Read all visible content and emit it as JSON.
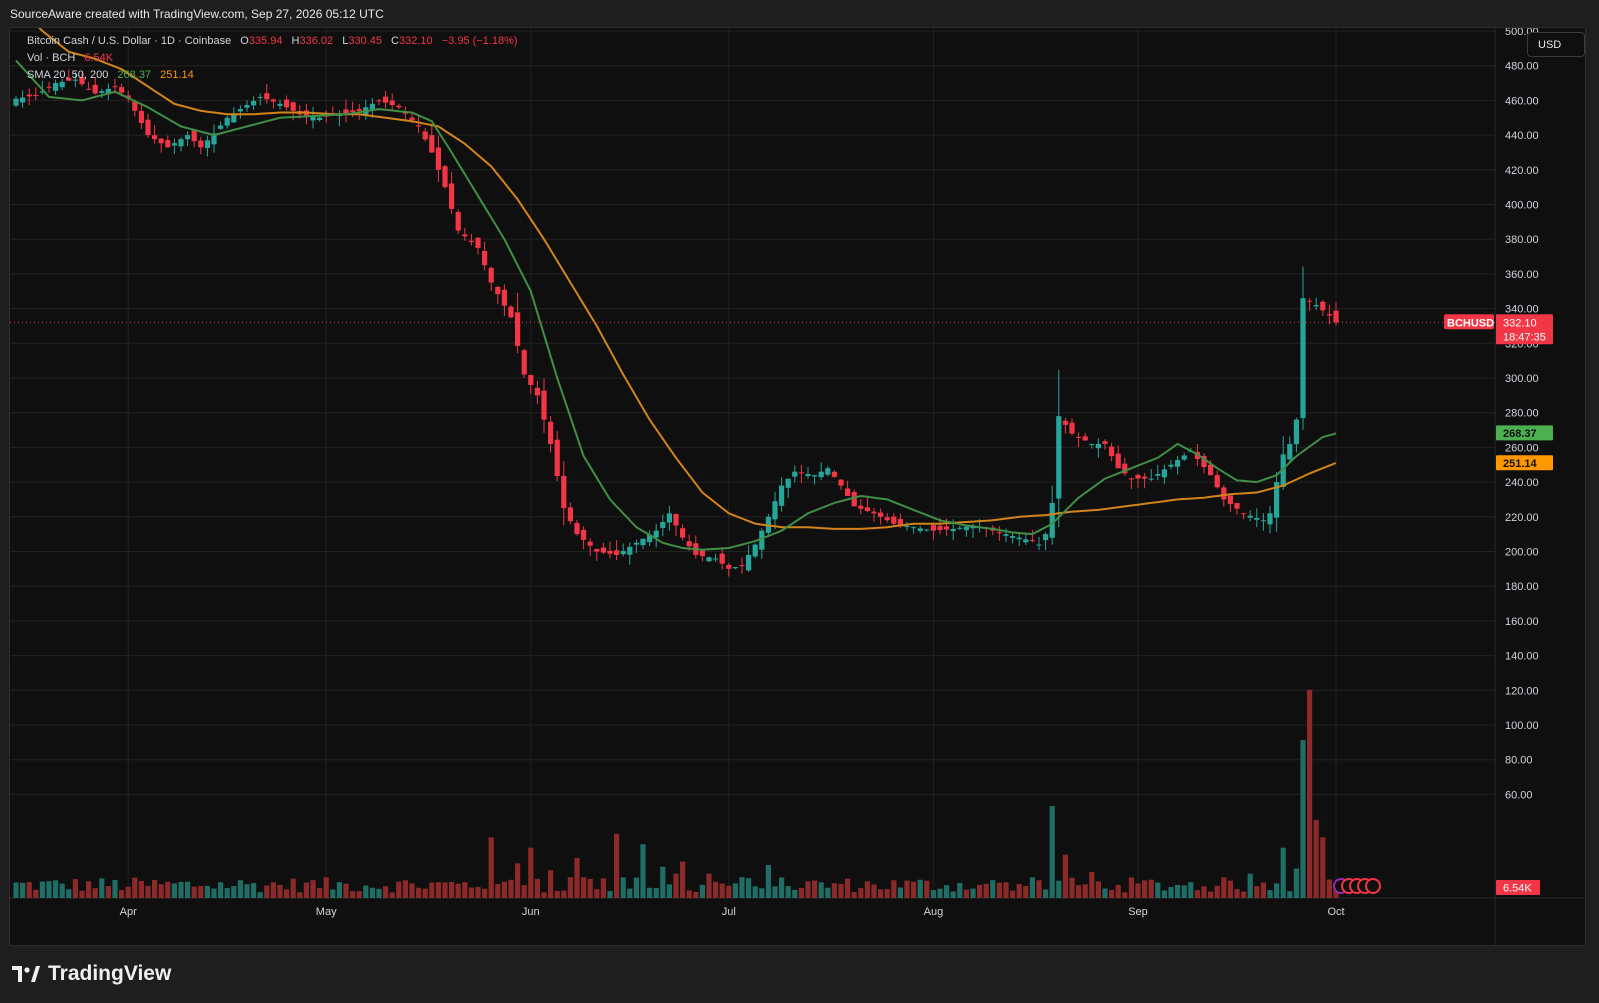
{
  "header": {
    "caption": "SourceAware created with TradingView.com, Sep 27, 2026 05:12 UTC"
  },
  "legend": {
    "symbol": "Bitcoin Cash / U.S. Dollar · 1D · Coinbase",
    "o_label": "O",
    "o_value": "335.94",
    "h_label": "H",
    "h_value": "336.02",
    "l_label": "L",
    "l_value": "330.45",
    "c_label": "C",
    "c_value": "332.10",
    "change": "−3.95 (−1.18%)",
    "vol_label": "Vol · BCH",
    "vol_value": "6.54K",
    "sma_label": "SMA 20, 50, 200",
    "sma20_value": "268.37",
    "sma50_value": "251.14"
  },
  "currency_button": "USD",
  "footer": {
    "brand": "TradingView"
  },
  "colors": {
    "up": "#26a69a",
    "down": "#f23645",
    "vol_up": "#1e6e66",
    "vol_down": "#8c2a2a",
    "sma20": "#4caf50",
    "sma50": "#ff9800",
    "grid": "#222222"
  },
  "chart_data": {
    "type": "candlestick",
    "symbol": "BCHUSD",
    "y_ticks": [
      "500.00",
      "480.00",
      "460.00",
      "440.00",
      "420.00",
      "400.00",
      "380.00",
      "360.00",
      "340.00",
      "320.00",
      "300.00",
      "280.00",
      "260.00",
      "240.00",
      "220.00",
      "200.00",
      "180.00",
      "160.00",
      "140.00",
      "120.00",
      "100.00",
      "80.00",
      "60.00"
    ],
    "ylim": [
      0,
      520
    ],
    "x_labels": [
      "Apr",
      "May",
      "Jun",
      "Jul",
      "Aug",
      "Sep",
      "Oct"
    ],
    "x_label_days": [
      17,
      47,
      78,
      108,
      139,
      170,
      200
    ],
    "last_price_label": "332.10",
    "countdown_label": "18:47:35",
    "sma20_label": "268.37",
    "sma50_label": "251.14",
    "volume_label": "6.54K",
    "price_keyframes": [
      [
        0,
        461
      ],
      [
        3,
        463
      ],
      [
        6,
        470
      ],
      [
        9,
        472
      ],
      [
        12,
        464
      ],
      [
        15,
        468
      ],
      [
        17,
        461
      ],
      [
        20,
        440
      ],
      [
        23,
        433
      ],
      [
        26,
        440
      ],
      [
        28,
        433
      ],
      [
        30,
        441
      ],
      [
        32,
        450
      ],
      [
        34,
        455
      ],
      [
        37,
        462
      ],
      [
        40,
        458
      ],
      [
        43,
        452
      ],
      [
        46,
        450
      ],
      [
        49,
        452
      ],
      [
        52,
        454
      ],
      [
        55,
        460
      ],
      [
        58,
        456
      ],
      [
        61,
        445
      ],
      [
        63,
        430
      ],
      [
        65,
        410
      ],
      [
        67,
        385
      ],
      [
        70,
        375
      ],
      [
        72,
        355
      ],
      [
        75,
        335
      ],
      [
        77,
        302
      ],
      [
        79,
        290
      ],
      [
        81,
        262
      ],
      [
        83,
        225
      ],
      [
        85,
        210
      ],
      [
        88,
        200
      ],
      [
        91,
        198
      ],
      [
        94,
        205
      ],
      [
        97,
        212
      ],
      [
        99,
        222
      ],
      [
        101,
        208
      ],
      [
        103,
        198
      ],
      [
        106,
        196
      ],
      [
        108,
        190
      ],
      [
        110,
        192
      ],
      [
        112,
        204
      ],
      [
        114,
        220
      ],
      [
        116,
        238
      ],
      [
        118,
        246
      ],
      [
        121,
        244
      ],
      [
        123,
        248
      ],
      [
        125,
        238
      ],
      [
        127,
        226
      ],
      [
        130,
        222
      ],
      [
        133,
        216
      ],
      [
        136,
        214
      ],
      [
        139,
        212
      ],
      [
        142,
        213
      ],
      [
        145,
        215
      ],
      [
        148,
        212
      ],
      [
        151,
        209
      ],
      [
        154,
        206
      ],
      [
        155,
        204
      ],
      [
        156,
        210
      ],
      [
        157,
        228
      ],
      [
        158,
        278
      ],
      [
        160,
        268
      ],
      [
        163,
        262
      ],
      [
        165,
        262
      ],
      [
        167,
        248
      ],
      [
        169,
        242
      ],
      [
        172,
        242
      ],
      [
        175,
        250
      ],
      [
        178,
        258
      ],
      [
        181,
        244
      ],
      [
        183,
        230
      ],
      [
        186,
        222
      ],
      [
        189,
        218
      ],
      [
        190,
        222
      ],
      [
        191,
        240
      ],
      [
        192,
        256
      ],
      [
        193,
        262
      ],
      [
        194,
        276
      ],
      [
        195,
        346
      ],
      [
        197,
        342
      ],
      [
        199,
        336
      ],
      [
        200,
        332
      ]
    ],
    "price_high": 366,
    "price_low": 182,
    "sma20_keyframes": [
      [
        0,
        483
      ],
      [
        5,
        462
      ],
      [
        10,
        460
      ],
      [
        15,
        465
      ],
      [
        20,
        456
      ],
      [
        25,
        445
      ],
      [
        30,
        440
      ],
      [
        35,
        445
      ],
      [
        40,
        450
      ],
      [
        45,
        451
      ],
      [
        50,
        452
      ],
      [
        55,
        455
      ],
      [
        60,
        453
      ],
      [
        63,
        448
      ],
      [
        66,
        430
      ],
      [
        70,
        405
      ],
      [
        74,
        380
      ],
      [
        78,
        350
      ],
      [
        82,
        300
      ],
      [
        86,
        255
      ],
      [
        90,
        230
      ],
      [
        94,
        214
      ],
      [
        98,
        205
      ],
      [
        101,
        202
      ],
      [
        104,
        201
      ],
      [
        108,
        202
      ],
      [
        112,
        206
      ],
      [
        116,
        212
      ],
      [
        120,
        222
      ],
      [
        124,
        228
      ],
      [
        128,
        232
      ],
      [
        132,
        230
      ],
      [
        136,
        224
      ],
      [
        140,
        218
      ],
      [
        144,
        215
      ],
      [
        148,
        213
      ],
      [
        151,
        211
      ],
      [
        154,
        210
      ],
      [
        157,
        216
      ],
      [
        161,
        231
      ],
      [
        165,
        242
      ],
      [
        169,
        248
      ],
      [
        173,
        254
      ],
      [
        176,
        262
      ],
      [
        179,
        256
      ],
      [
        182,
        248
      ],
      [
        185,
        241
      ],
      [
        188,
        240
      ],
      [
        191,
        244
      ],
      [
        194,
        255
      ],
      [
        198,
        266
      ],
      [
        200,
        268
      ]
    ],
    "sma50_keyframes": [
      [
        0,
        516
      ],
      [
        4,
        500
      ],
      [
        8,
        488
      ],
      [
        12,
        484
      ],
      [
        16,
        478
      ],
      [
        20,
        468
      ],
      [
        24,
        458
      ],
      [
        28,
        454
      ],
      [
        32,
        452
      ],
      [
        36,
        452
      ],
      [
        40,
        453
      ],
      [
        44,
        453
      ],
      [
        48,
        452
      ],
      [
        52,
        452
      ],
      [
        56,
        450
      ],
      [
        60,
        448
      ],
      [
        64,
        445
      ],
      [
        68,
        435
      ],
      [
        72,
        422
      ],
      [
        76,
        403
      ],
      [
        80,
        380
      ],
      [
        84,
        355
      ],
      [
        88,
        330
      ],
      [
        92,
        302
      ],
      [
        96,
        276
      ],
      [
        100,
        254
      ],
      [
        104,
        234
      ],
      [
        108,
        222
      ],
      [
        112,
        216
      ],
      [
        116,
        214
      ],
      [
        120,
        214
      ],
      [
        124,
        213
      ],
      [
        128,
        213
      ],
      [
        132,
        214
      ],
      [
        136,
        216
      ],
      [
        140,
        216
      ],
      [
        144,
        217
      ],
      [
        148,
        218
      ],
      [
        152,
        220
      ],
      [
        156,
        221
      ],
      [
        160,
        223
      ],
      [
        164,
        224
      ],
      [
        168,
        226
      ],
      [
        172,
        228
      ],
      [
        176,
        230
      ],
      [
        180,
        231
      ],
      [
        184,
        233
      ],
      [
        188,
        234
      ],
      [
        192,
        238
      ],
      [
        196,
        245
      ],
      [
        200,
        251
      ]
    ],
    "volume_spikes": [
      [
        78,
        29
      ],
      [
        91,
        37
      ],
      [
        95,
        31
      ],
      [
        101,
        21
      ],
      [
        114,
        19
      ],
      [
        157,
        53
      ],
      [
        159,
        25
      ],
      [
        187,
        14
      ],
      [
        192,
        29
      ],
      [
        195,
        91
      ],
      [
        196,
        120
      ],
      [
        197,
        45
      ],
      [
        198,
        35
      ],
      [
        194,
        17
      ],
      [
        85,
        23
      ],
      [
        86,
        12
      ],
      [
        87,
        11
      ],
      [
        72,
        35
      ],
      [
        76,
        20
      ],
      [
        81,
        16
      ],
      [
        84,
        12
      ],
      [
        98,
        18
      ],
      [
        100,
        14
      ],
      [
        105,
        14
      ],
      [
        110,
        12
      ],
      [
        150,
        9
      ],
      [
        158,
        10
      ],
      [
        163,
        15
      ]
    ],
    "volume_base": 8
  }
}
